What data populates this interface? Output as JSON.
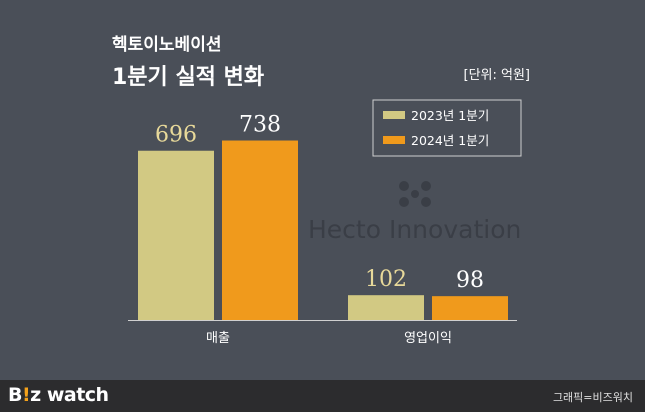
{
  "chart_data": {
    "type": "bar",
    "title": "헥토이노베이션",
    "subtitle": "1분기 실적 변화",
    "unit_label": "[단위: 억원]",
    "categories": [
      "매출",
      "영업이익"
    ],
    "series": [
      {
        "name": "2023년 1분기",
        "values": [
          696,
          102
        ],
        "color": "#d2c983"
      },
      {
        "name": "2024년 1분기",
        "values": [
          738,
          98
        ],
        "color": "#f09a1c"
      }
    ],
    "legend_position": "top-right",
    "grid": false
  },
  "watermark": {
    "text": "Hecto Innovation",
    "logo_icon": "hecto-logo-icon"
  },
  "footer": {
    "brand_prefix": "B",
    "brand_accent": "!",
    "brand_suffix": "z watch",
    "credit": "그래픽=비즈워치"
  },
  "colors": {
    "background": "#4a4f58",
    "footer": "#2c2c2e",
    "value_2023": "#e8d99a",
    "value_2024": "#ffffff"
  }
}
